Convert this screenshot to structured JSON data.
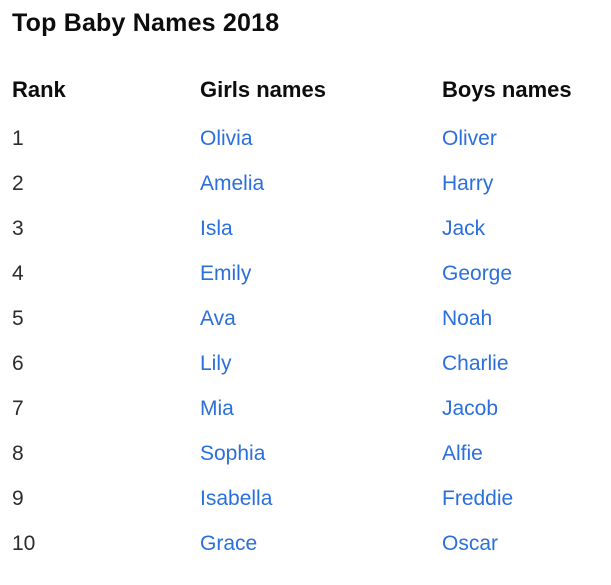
{
  "page": {
    "title": "Top Baby Names 2018"
  },
  "colors": {
    "link_blue": "#2b6fdd",
    "heading_text": "#0d0d0d",
    "rank_text": "#2e2c29",
    "background": "#ffffff"
  },
  "table": {
    "columns": [
      "Rank",
      "Girls names",
      "Boys names"
    ],
    "rows": [
      {
        "rank": "1",
        "girl": "Olivia",
        "boy": "Oliver"
      },
      {
        "rank": "2",
        "girl": "Amelia",
        "boy": "Harry"
      },
      {
        "rank": "3",
        "girl": "Isla",
        "boy": "Jack"
      },
      {
        "rank": "4",
        "girl": "Emily",
        "boy": "George"
      },
      {
        "rank": "5",
        "girl": "Ava",
        "boy": "Noah"
      },
      {
        "rank": "6",
        "girl": "Lily",
        "boy": "Charlie"
      },
      {
        "rank": "7",
        "girl": "Mia",
        "boy": "Jacob"
      },
      {
        "rank": "8",
        "girl": "Sophia",
        "boy": "Alfie"
      },
      {
        "rank": "9",
        "girl": "Isabella",
        "boy": "Freddie"
      },
      {
        "rank": "10",
        "girl": "Grace",
        "boy": "Oscar"
      }
    ]
  }
}
